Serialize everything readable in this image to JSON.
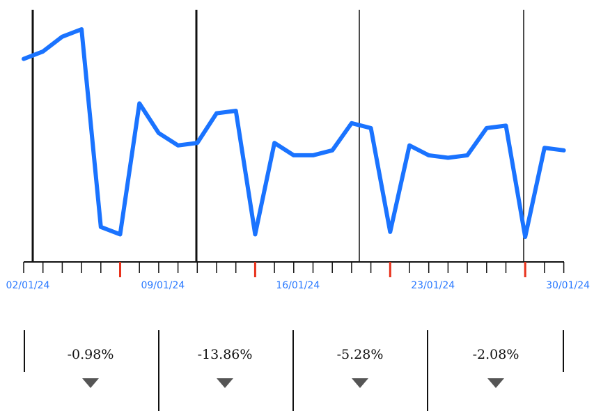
{
  "chart_data": {
    "type": "line",
    "x": [
      "2024-01-02",
      "2024-01-03",
      "2024-01-04",
      "2024-01-05",
      "2024-01-06",
      "2024-01-07",
      "2024-01-08",
      "2024-01-09",
      "2024-01-10",
      "2024-01-11",
      "2024-01-12",
      "2024-01-13",
      "2024-01-14",
      "2024-01-15",
      "2024-01-16",
      "2024-01-17",
      "2024-01-18",
      "2024-01-19",
      "2024-01-20",
      "2024-01-21",
      "2024-01-22",
      "2024-01-23",
      "2024-01-24",
      "2024-01-25",
      "2024-01-26",
      "2024-01-27",
      "2024-01-28",
      "2024-01-29",
      "2024-01-30"
    ],
    "series": [
      {
        "values": [
          88,
          91,
          97,
          100,
          20,
          17,
          70,
          58,
          53,
          54,
          66,
          67,
          17,
          54,
          49,
          49,
          51,
          62,
          60,
          18,
          53,
          49,
          48,
          49,
          60,
          61,
          16,
          52,
          51
        ]
      }
    ],
    "ylim": [
      0,
      110
    ],
    "x_tick_labels": [
      "02/01/24",
      "09/01/24",
      "16/01/24",
      "23/01/24",
      "30/01/24"
    ],
    "x_tick_label_dates": [
      "2024-01-02",
      "2024-01-09",
      "2024-01-16",
      "2024-01-23",
      "2024-01-30"
    ],
    "highlighted_dates": [
      "2024-01-07",
      "2024-01-14",
      "2024-01-21",
      "2024-01-28"
    ],
    "period_boundaries": [
      "2024-01-02",
      "2024-01-11",
      "2024-01-19",
      "2024-01-28"
    ],
    "line_color": "#1a73ff",
    "tick_label_color": "#2979ff",
    "highlight_tick_color": "#e8321c",
    "grid": false
  },
  "changes": {
    "items": [
      {
        "label": "-0.98%",
        "direction": "down"
      },
      {
        "label": "-13.86%",
        "direction": "down"
      },
      {
        "label": "-5.28%",
        "direction": "down"
      },
      {
        "label": "-2.08%",
        "direction": "down"
      }
    ],
    "arrow_color": "#555555"
  }
}
